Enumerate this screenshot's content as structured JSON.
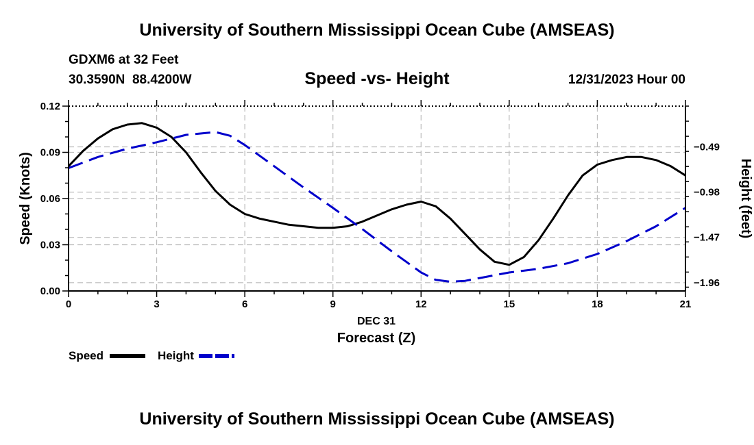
{
  "header": {
    "title": "University of Southern Mississippi Ocean Cube (AMSEAS)",
    "station": "GDXM6 at 32 Feet",
    "coords": "30.3590N  88.4200W",
    "subtitle": "Speed -vs- Height",
    "datetime": "12/31/2023 Hour 00"
  },
  "footer": {
    "title": "University of Southern Mississippi Ocean Cube (AMSEAS)"
  },
  "chart_data": {
    "type": "line",
    "title": "Speed -vs- Height",
    "xlabel": "Forecast (Z)",
    "xlabel_date": "DEC 31",
    "ylabel": "Speed (Knots)",
    "y2label": "Height (feet)",
    "xlim": [
      0,
      21
    ],
    "ylim": [
      0,
      0.12
    ],
    "y2lim": [
      -2.05,
      -0.049
    ],
    "x_ticks": [
      0,
      3,
      6,
      9,
      12,
      15,
      18,
      21
    ],
    "x_tick_labels": [
      "0",
      "3",
      "6",
      "9",
      "12",
      "15",
      "18",
      "21"
    ],
    "y_ticks": [
      0,
      0.03,
      0.06,
      0.09,
      0.12
    ],
    "y_tick_labels": [
      "0.00",
      "0.03",
      "0.06",
      "0.09",
      "0.12"
    ],
    "y2_ticks": [
      -0.49,
      -0.98,
      -1.47,
      -1.96
    ],
    "y2_tick_labels": [
      "-0.49",
      "-0.98",
      "-1.47",
      "-1.96"
    ],
    "grid": true,
    "legend": [
      {
        "name": "Speed",
        "color": "#000000",
        "style": "solid"
      },
      {
        "name": "Height",
        "color": "#0000cc",
        "style": "dashed"
      }
    ],
    "series": [
      {
        "name": "Speed",
        "axis": "left",
        "color": "#000000",
        "style": "solid",
        "x": [
          0,
          0.5,
          1,
          1.5,
          2,
          2.5,
          3,
          3.5,
          4,
          4.5,
          5,
          5.5,
          6,
          6.5,
          7,
          7.5,
          8,
          8.5,
          9,
          9.5,
          10,
          10.5,
          11,
          11.5,
          12,
          12.5,
          13,
          13.5,
          14,
          14.5,
          15,
          15.5,
          16,
          16.5,
          17,
          17.5,
          18,
          18.5,
          19,
          19.5,
          20,
          20.5,
          21
        ],
        "values": [
          0.081,
          0.091,
          0.099,
          0.105,
          0.108,
          0.109,
          0.106,
          0.1,
          0.09,
          0.077,
          0.065,
          0.056,
          0.05,
          0.047,
          0.045,
          0.043,
          0.042,
          0.041,
          0.041,
          0.042,
          0.045,
          0.049,
          0.053,
          0.056,
          0.058,
          0.055,
          0.047,
          0.037,
          0.027,
          0.019,
          0.017,
          0.022,
          0.033,
          0.047,
          0.062,
          0.075,
          0.082,
          0.085,
          0.087,
          0.087,
          0.085,
          0.081,
          0.075
        ]
      },
      {
        "name": "Height",
        "axis": "right",
        "color": "#0000cc",
        "style": "dashed",
        "x": [
          0,
          1,
          2,
          3,
          4,
          5,
          5.5,
          6,
          7,
          8,
          9,
          10,
          11,
          12,
          12.5,
          13,
          13.5,
          14,
          15,
          16,
          17,
          18,
          19,
          20,
          21
        ],
        "values": [
          -0.72,
          -0.6,
          -0.51,
          -0.44,
          -0.36,
          -0.33,
          -0.37,
          -0.47,
          -0.7,
          -0.93,
          -1.15,
          -1.38,
          -1.62,
          -1.85,
          -1.93,
          -1.95,
          -1.94,
          -1.91,
          -1.85,
          -1.81,
          -1.75,
          -1.65,
          -1.51,
          -1.35,
          -1.15
        ]
      }
    ]
  }
}
